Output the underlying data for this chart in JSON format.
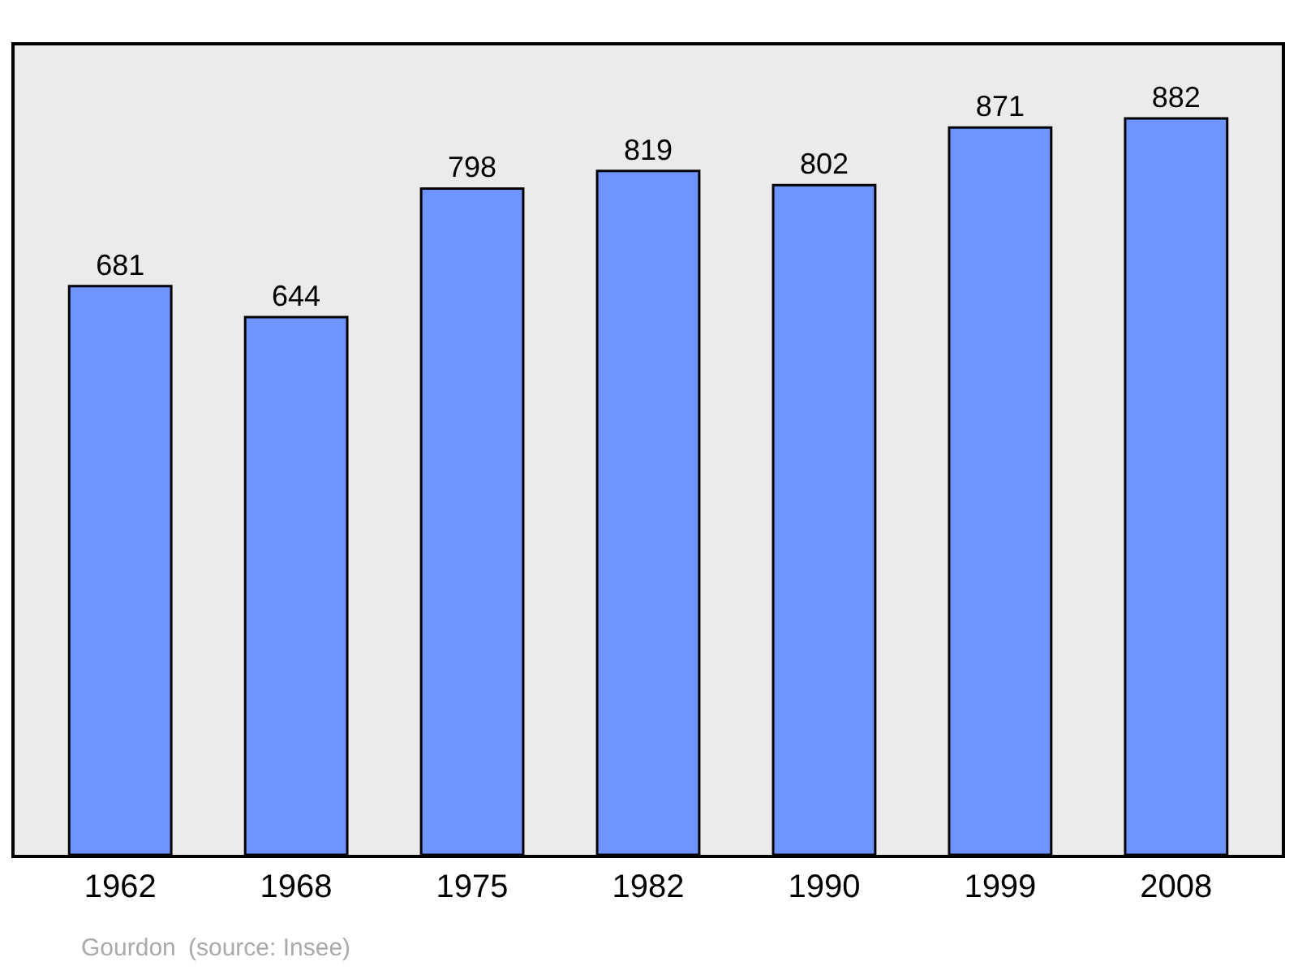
{
  "chart_data": {
    "type": "bar",
    "categories": [
      "1962",
      "1968",
      "1975",
      "1982",
      "1990",
      "1999",
      "2008"
    ],
    "values": [
      681,
      644,
      798,
      819,
      802,
      871,
      882
    ],
    "color": "#7094ff",
    "data_labels": true,
    "grid": false,
    "annotations": [
      "Gourdon",
      "(source: Insee)"
    ]
  }
}
